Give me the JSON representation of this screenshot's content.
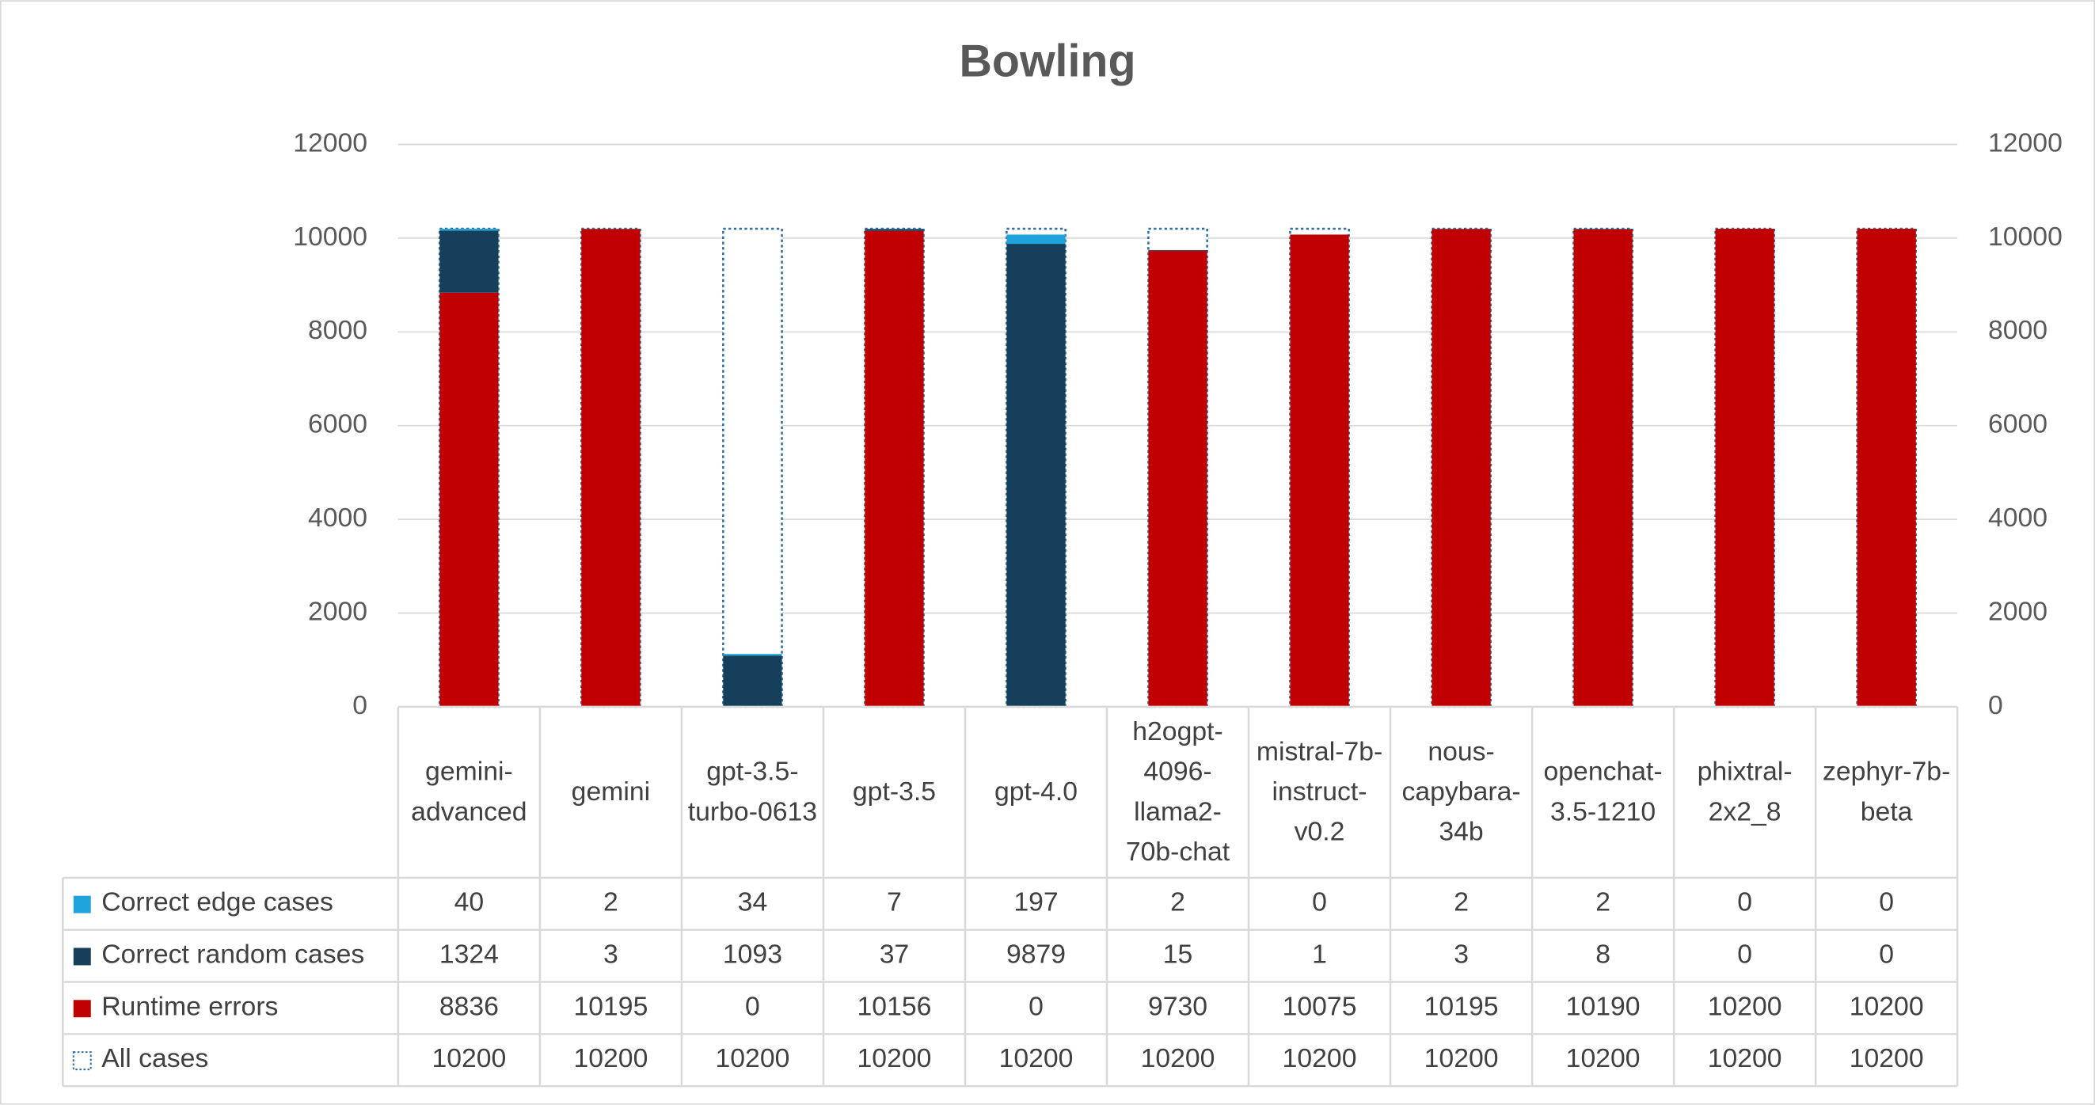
{
  "chart_data": {
    "type": "stacked_bar",
    "title": "Bowling",
    "categories": [
      "gemini-advanced",
      "gemini",
      "gpt-3.5-turbo-0613",
      "gpt-3.5",
      "gpt-4.0",
      "h2ogpt-4096-llama2-70b-chat",
      "mistral-7b-instruct-v0.2",
      "nous-capybara-34b",
      "openchat-3.5-1210",
      "phixtral-2x2_8",
      "zephyr-7b-beta"
    ],
    "series": [
      {
        "name": "Correct edge cases",
        "color": "#1fa3dd",
        "values": [
          40,
          2,
          34,
          7,
          197,
          2,
          0,
          2,
          2,
          0,
          0
        ]
      },
      {
        "name": "Correct random cases",
        "color": "#163f5c",
        "values": [
          1324,
          3,
          1093,
          37,
          9879,
          15,
          1,
          3,
          8,
          0,
          0
        ]
      },
      {
        "name": "Runtime errors",
        "color": "#c00000",
        "values": [
          8836,
          10195,
          0,
          10156,
          0,
          9730,
          10075,
          10195,
          10190,
          10200,
          10200
        ]
      },
      {
        "name": "All cases",
        "color": "#ffffff",
        "border_color": "#2e6e9e",
        "axis": "y2",
        "values": [
          10200,
          10200,
          10200,
          10200,
          10200,
          10200,
          10200,
          10200,
          10200,
          10200,
          10200
        ]
      }
    ],
    "ylim": [
      0,
      12000
    ],
    "yticks": [
      0,
      2000,
      4000,
      6000,
      8000,
      10000,
      12000
    ],
    "y2lim": [
      0,
      12000
    ],
    "y2ticks": [
      0,
      2000,
      4000,
      6000,
      8000,
      10000,
      12000
    ],
    "grid": true,
    "legend": "data-table"
  }
}
